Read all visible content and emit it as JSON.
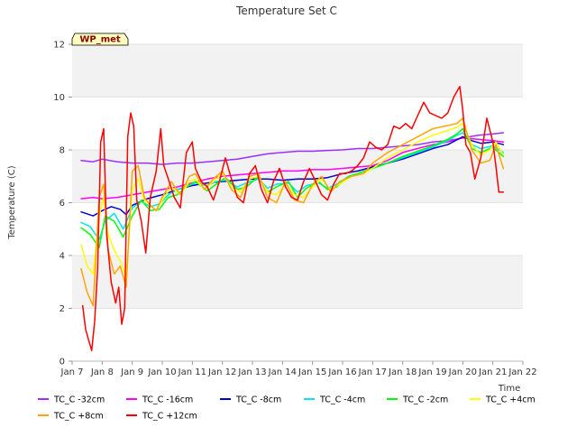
{
  "chart_data": {
    "type": "line",
    "title": "Temperature Set C",
    "xlabel": "Time",
    "ylabel": "Temperature (C)",
    "badge": "WP_met",
    "xlim": [
      7,
      22
    ],
    "ylim": [
      0,
      12
    ],
    "yticks": [
      0,
      2,
      4,
      6,
      8,
      10,
      12
    ],
    "xticks": [
      {
        "v": 7,
        "label": "Jan 7"
      },
      {
        "v": 8,
        "label": "Jan 8"
      },
      {
        "v": 9,
        "label": "Jan 9"
      },
      {
        "v": 10,
        "label": "Jan 10"
      },
      {
        "v": 11,
        "label": "Jan 11"
      },
      {
        "v": 12,
        "label": "Jan 12"
      },
      {
        "v": 13,
        "label": "Jan 13"
      },
      {
        "v": 14,
        "label": "Jan 14"
      },
      {
        "v": 15,
        "label": "Jan 15"
      },
      {
        "v": 16,
        "label": "Jan 16"
      },
      {
        "v": 17,
        "label": "Jan 17"
      },
      {
        "v": 18,
        "label": "Jan 18"
      },
      {
        "v": 19,
        "label": "Jan 19"
      },
      {
        "v": 20,
        "label": "Jan 20"
      },
      {
        "v": 21,
        "label": "Jan 21"
      },
      {
        "v": 22,
        "label": "Jan 22"
      }
    ],
    "grid": true,
    "legend_position": "bottom",
    "series": [
      {
        "name": "TC_C -32cm",
        "color": "#9b30ff",
        "x": [
          7.3,
          7.7,
          8.0,
          8.5,
          9.0,
          9.5,
          10.0,
          10.5,
          11.0,
          11.5,
          12.0,
          12.5,
          13.0,
          13.5,
          14.0,
          14.5,
          15.0,
          15.5,
          16.0,
          16.5,
          17.0,
          17.5,
          18.0,
          18.5,
          19.0,
          19.5,
          20.0,
          20.5,
          21.0,
          21.35
        ],
        "y": [
          7.6,
          7.55,
          7.65,
          7.55,
          7.5,
          7.5,
          7.45,
          7.5,
          7.5,
          7.55,
          7.6,
          7.65,
          7.75,
          7.85,
          7.9,
          7.95,
          7.95,
          7.98,
          8.0,
          8.05,
          8.05,
          8.1,
          8.15,
          8.2,
          8.3,
          8.35,
          8.45,
          8.55,
          8.6,
          8.65
        ]
      },
      {
        "name": "TC_C -16cm",
        "color": "#ff00ff",
        "x": [
          7.3,
          7.7,
          8.0,
          8.5,
          9.0,
          9.5,
          10.0,
          10.5,
          11.0,
          11.5,
          12.0,
          12.5,
          13.0,
          13.5,
          14.0,
          14.5,
          15.0,
          15.5,
          16.0,
          16.5,
          17.0,
          17.5,
          18.0,
          18.5,
          19.0,
          19.5,
          20.0,
          20.5,
          21.0,
          21.35
        ],
        "y": [
          6.15,
          6.2,
          6.15,
          6.2,
          6.3,
          6.4,
          6.5,
          6.6,
          6.75,
          6.9,
          7.0,
          7.05,
          7.1,
          7.15,
          7.2,
          7.2,
          7.25,
          7.25,
          7.3,
          7.35,
          7.4,
          7.6,
          7.9,
          8.05,
          8.2,
          8.3,
          8.45,
          8.4,
          8.35,
          8.3
        ]
      },
      {
        "name": "TC_C -8cm",
        "color": "#0000cd",
        "x": [
          7.3,
          7.7,
          8.0,
          8.3,
          8.6,
          8.8,
          9.0,
          9.5,
          10.0,
          10.5,
          11.0,
          11.5,
          12.0,
          12.5,
          13.0,
          13.5,
          14.0,
          14.5,
          15.0,
          15.5,
          16.0,
          16.5,
          17.0,
          17.5,
          18.0,
          18.5,
          19.0,
          19.5,
          20.0,
          20.3,
          20.6,
          21.0,
          21.35
        ],
        "y": [
          5.65,
          5.5,
          5.7,
          5.85,
          5.75,
          5.55,
          5.9,
          6.15,
          6.3,
          6.5,
          6.65,
          6.75,
          6.8,
          6.85,
          6.9,
          6.9,
          6.85,
          6.9,
          6.9,
          6.95,
          7.1,
          7.2,
          7.35,
          7.5,
          7.65,
          7.85,
          8.05,
          8.2,
          8.5,
          8.35,
          8.25,
          8.3,
          8.2
        ]
      },
      {
        "name": "TC_C -4cm",
        "color": "#00e5ee",
        "x": [
          7.3,
          7.6,
          7.9,
          8.1,
          8.4,
          8.7,
          9.0,
          9.3,
          9.6,
          9.9,
          10.2,
          10.5,
          10.8,
          11.1,
          11.5,
          11.8,
          12.1,
          12.5,
          12.8,
          13.2,
          13.5,
          13.8,
          14.2,
          14.5,
          14.8,
          15.2,
          15.5,
          15.8,
          16.2,
          16.5,
          17.0,
          17.5,
          18.0,
          18.5,
          19.0,
          19.5,
          19.8,
          20.0,
          20.3,
          20.6,
          21.0,
          21.35
        ],
        "y": [
          5.25,
          5.1,
          4.6,
          5.3,
          5.6,
          5.0,
          5.8,
          6.05,
          5.85,
          5.95,
          6.3,
          6.5,
          6.6,
          6.75,
          6.65,
          6.8,
          6.85,
          6.6,
          6.75,
          6.9,
          6.55,
          6.7,
          6.75,
          6.4,
          6.65,
          6.75,
          6.55,
          6.7,
          7.0,
          7.1,
          7.3,
          7.5,
          7.7,
          7.9,
          8.1,
          8.35,
          8.55,
          8.65,
          8.2,
          8.05,
          8.15,
          7.9
        ]
      },
      {
        "name": "TC_C -2cm",
        "color": "#00ff00",
        "x": [
          7.3,
          7.6,
          7.9,
          8.1,
          8.4,
          8.7,
          9.0,
          9.3,
          9.6,
          9.9,
          10.2,
          10.5,
          10.8,
          11.1,
          11.5,
          11.8,
          12.1,
          12.5,
          12.8,
          13.2,
          13.5,
          13.8,
          14.2,
          14.5,
          14.8,
          15.2,
          15.5,
          15.8,
          16.2,
          16.5,
          17.0,
          17.5,
          18.0,
          18.5,
          19.0,
          19.5,
          19.8,
          20.0,
          20.3,
          20.6,
          21.0,
          21.35
        ],
        "y": [
          5.05,
          4.8,
          4.3,
          5.5,
          5.3,
          4.7,
          5.5,
          6.1,
          5.7,
          5.75,
          6.2,
          6.3,
          6.6,
          6.8,
          6.45,
          6.7,
          6.95,
          6.5,
          6.6,
          7.0,
          6.4,
          6.6,
          6.8,
          6.2,
          6.55,
          6.8,
          6.5,
          6.6,
          7.0,
          7.1,
          7.3,
          7.5,
          7.75,
          7.95,
          8.15,
          8.4,
          8.6,
          8.8,
          8.05,
          7.9,
          8.1,
          7.75
        ]
      },
      {
        "name": "TC_C +4cm",
        "color": "#ffff00",
        "x": [
          7.3,
          7.5,
          7.7,
          7.9,
          8.05,
          8.2,
          8.4,
          8.6,
          8.8,
          9.0,
          9.2,
          9.4,
          9.6,
          9.8,
          10.0,
          10.3,
          10.6,
          10.9,
          11.1,
          11.4,
          11.7,
          12.0,
          12.3,
          12.6,
          12.9,
          13.2,
          13.5,
          13.8,
          14.1,
          14.4,
          14.7,
          15.0,
          15.3,
          15.6,
          15.9,
          16.3,
          16.7,
          17.0,
          17.5,
          18.0,
          18.5,
          19.0,
          19.4,
          19.8,
          20.0,
          20.3,
          20.6,
          20.9,
          21.1,
          21.35
        ],
        "y": [
          4.4,
          3.6,
          3.3,
          5.5,
          6.2,
          4.8,
          4.2,
          3.8,
          3.2,
          6.5,
          6.9,
          6.1,
          5.9,
          5.7,
          6.1,
          6.6,
          6.3,
          6.8,
          6.9,
          6.5,
          6.8,
          7.1,
          6.6,
          6.4,
          6.9,
          7.0,
          6.4,
          6.3,
          6.7,
          6.3,
          6.2,
          6.6,
          6.9,
          6.5,
          6.7,
          7.0,
          7.1,
          7.3,
          7.7,
          8.0,
          8.3,
          8.55,
          8.7,
          8.85,
          9.0,
          8.2,
          7.8,
          8.0,
          8.3,
          7.8
        ]
      },
      {
        "name": "TC_C +8cm",
        "color": "#ffa500",
        "x": [
          7.3,
          7.5,
          7.7,
          7.9,
          8.05,
          8.2,
          8.4,
          8.6,
          8.8,
          9.0,
          9.2,
          9.4,
          9.6,
          9.8,
          10.0,
          10.3,
          10.6,
          10.9,
          11.1,
          11.4,
          11.7,
          12.0,
          12.3,
          12.6,
          12.9,
          13.2,
          13.5,
          13.8,
          14.1,
          14.4,
          14.7,
          15.0,
          15.3,
          15.6,
          15.9,
          16.3,
          16.7,
          17.0,
          17.5,
          18.0,
          18.5,
          19.0,
          19.4,
          19.8,
          20.0,
          20.3,
          20.6,
          20.9,
          21.1,
          21.35
        ],
        "y": [
          3.5,
          2.6,
          2.1,
          6.2,
          6.7,
          4.2,
          3.3,
          3.6,
          2.8,
          7.2,
          7.4,
          6.2,
          5.9,
          5.7,
          6.2,
          6.8,
          6.3,
          7.0,
          7.1,
          6.5,
          6.9,
          7.2,
          6.5,
          6.2,
          7.0,
          7.1,
          6.2,
          6.0,
          6.8,
          6.1,
          6.0,
          6.7,
          7.0,
          6.4,
          6.8,
          7.0,
          7.1,
          7.5,
          7.9,
          8.2,
          8.5,
          8.8,
          8.9,
          9.0,
          9.2,
          8.0,
          7.5,
          7.6,
          8.2,
          7.3
        ]
      },
      {
        "name": "TC_C +12cm",
        "color": "#ff0000",
        "x": [
          7.35,
          7.45,
          7.55,
          7.65,
          7.75,
          7.85,
          7.95,
          8.05,
          8.15,
          8.3,
          8.45,
          8.55,
          8.65,
          8.75,
          8.85,
          8.95,
          9.05,
          9.15,
          9.3,
          9.45,
          9.6,
          9.8,
          9.95,
          10.05,
          10.2,
          10.4,
          10.6,
          10.8,
          11.0,
          11.1,
          11.3,
          11.5,
          11.7,
          11.9,
          12.1,
          12.3,
          12.5,
          12.7,
          12.9,
          13.1,
          13.3,
          13.5,
          13.7,
          13.9,
          14.1,
          14.3,
          14.5,
          14.7,
          14.9,
          15.1,
          15.3,
          15.5,
          15.7,
          15.9,
          16.1,
          16.3,
          16.5,
          16.7,
          16.9,
          17.1,
          17.3,
          17.5,
          17.7,
          17.9,
          18.1,
          18.3,
          18.5,
          18.7,
          18.9,
          19.1,
          19.3,
          19.5,
          19.7,
          19.9,
          20.0,
          20.1,
          20.25,
          20.4,
          20.6,
          20.8,
          21.0,
          21.1,
          21.2,
          21.3,
          21.35
        ],
        "y": [
          2.1,
          1.2,
          0.8,
          0.4,
          1.5,
          3.5,
          8.3,
          8.8,
          4.8,
          3.0,
          2.2,
          2.8,
          1.4,
          2.0,
          8.5,
          9.4,
          8.9,
          6.1,
          5.3,
          4.1,
          6.2,
          7.2,
          8.8,
          7.4,
          6.9,
          6.2,
          5.8,
          7.9,
          8.3,
          7.3,
          6.8,
          6.6,
          6.1,
          6.8,
          7.7,
          6.9,
          6.2,
          6.0,
          7.1,
          7.4,
          6.5,
          6.0,
          6.8,
          7.3,
          6.6,
          6.2,
          6.1,
          6.8,
          7.3,
          6.8,
          6.3,
          6.1,
          6.7,
          7.1,
          7.1,
          7.2,
          7.4,
          7.7,
          8.3,
          8.1,
          8.0,
          8.2,
          8.9,
          8.8,
          9.0,
          8.8,
          9.3,
          9.8,
          9.4,
          9.3,
          9.2,
          9.4,
          10.0,
          10.4,
          9.5,
          8.2,
          7.9,
          6.9,
          7.7,
          9.2,
          8.3,
          7.4,
          6.4,
          6.4,
          6.4
        ]
      }
    ]
  }
}
